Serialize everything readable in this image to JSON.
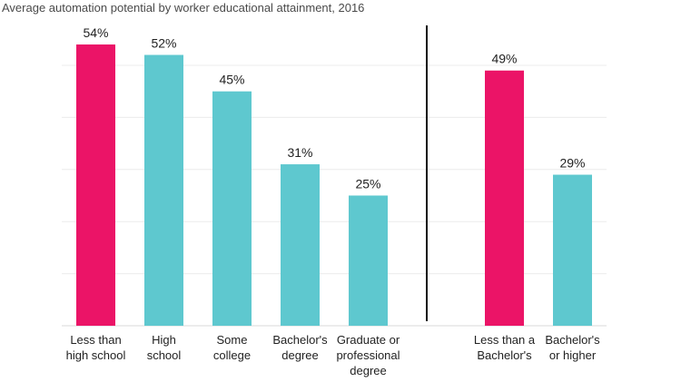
{
  "chart_data": {
    "type": "bar",
    "title": "Average automation potential by worker educational attainment, 2016",
    "ylim": [
      0,
      55
    ],
    "grid": true,
    "value_suffix": "%",
    "groups": [
      {
        "categories": [
          [
            "Less than",
            "high school"
          ],
          [
            "High",
            "school"
          ],
          [
            "Some",
            "college"
          ],
          [
            "Bachelor's",
            "degree"
          ],
          [
            "Graduate or",
            "professional",
            "degree"
          ]
        ],
        "values": [
          54,
          52,
          45,
          31,
          25
        ],
        "colors": [
          "#eb1467",
          "#5ec8cf",
          "#5ec8cf",
          "#5ec8cf",
          "#5ec8cf"
        ]
      },
      {
        "categories": [
          [
            "Less than a",
            "Bachelor's"
          ],
          [
            "Bachelor's",
            "or higher"
          ]
        ],
        "values": [
          49,
          29
        ],
        "colors": [
          "#eb1467",
          "#5ec8cf"
        ]
      }
    ]
  }
}
